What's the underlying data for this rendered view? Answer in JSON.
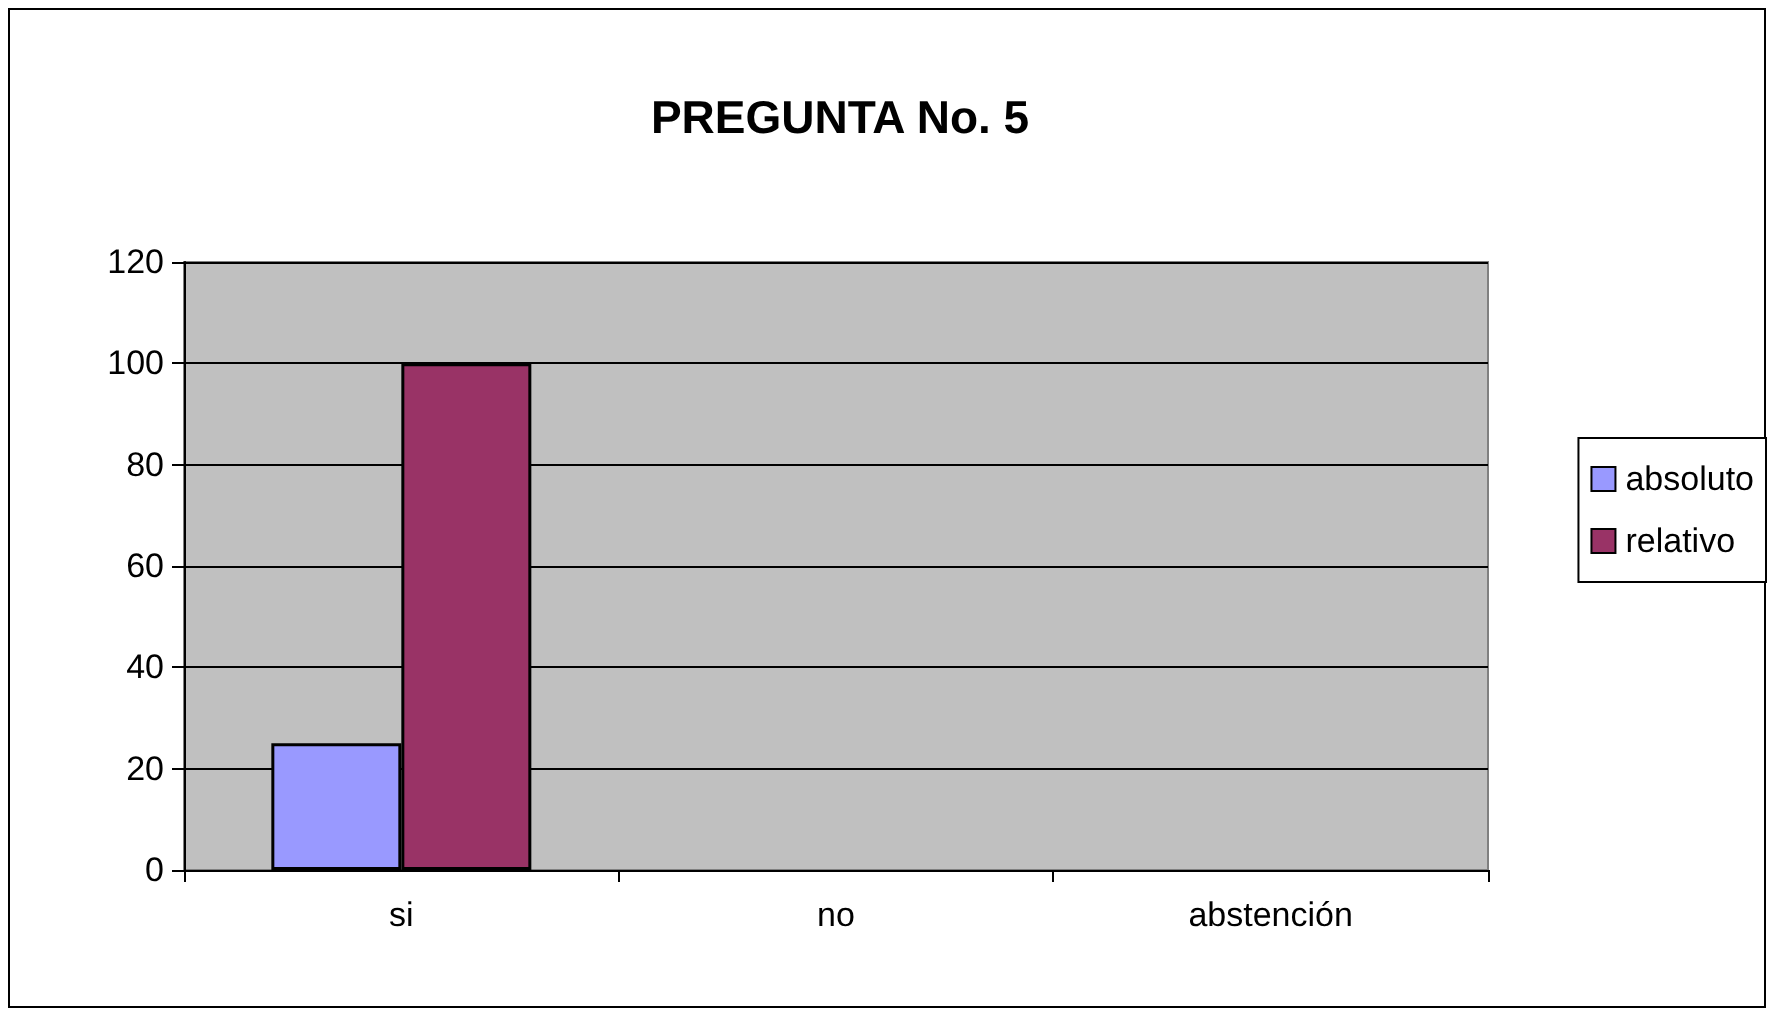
{
  "chart_data": {
    "type": "bar",
    "title": "PREGUNTA No. 5",
    "categories": [
      "si",
      "no",
      "abstención"
    ],
    "series": [
      {
        "name": "absoluto",
        "color": "#9999ff",
        "values": [
          25,
          0,
          0
        ]
      },
      {
        "name": "relativo",
        "color": "#993366",
        "values": [
          100,
          0,
          0
        ]
      }
    ],
    "ylim": [
      0,
      120
    ],
    "yticks": [
      0,
      20,
      40,
      60,
      80,
      100,
      120
    ],
    "grid": "y",
    "legend": "right"
  }
}
